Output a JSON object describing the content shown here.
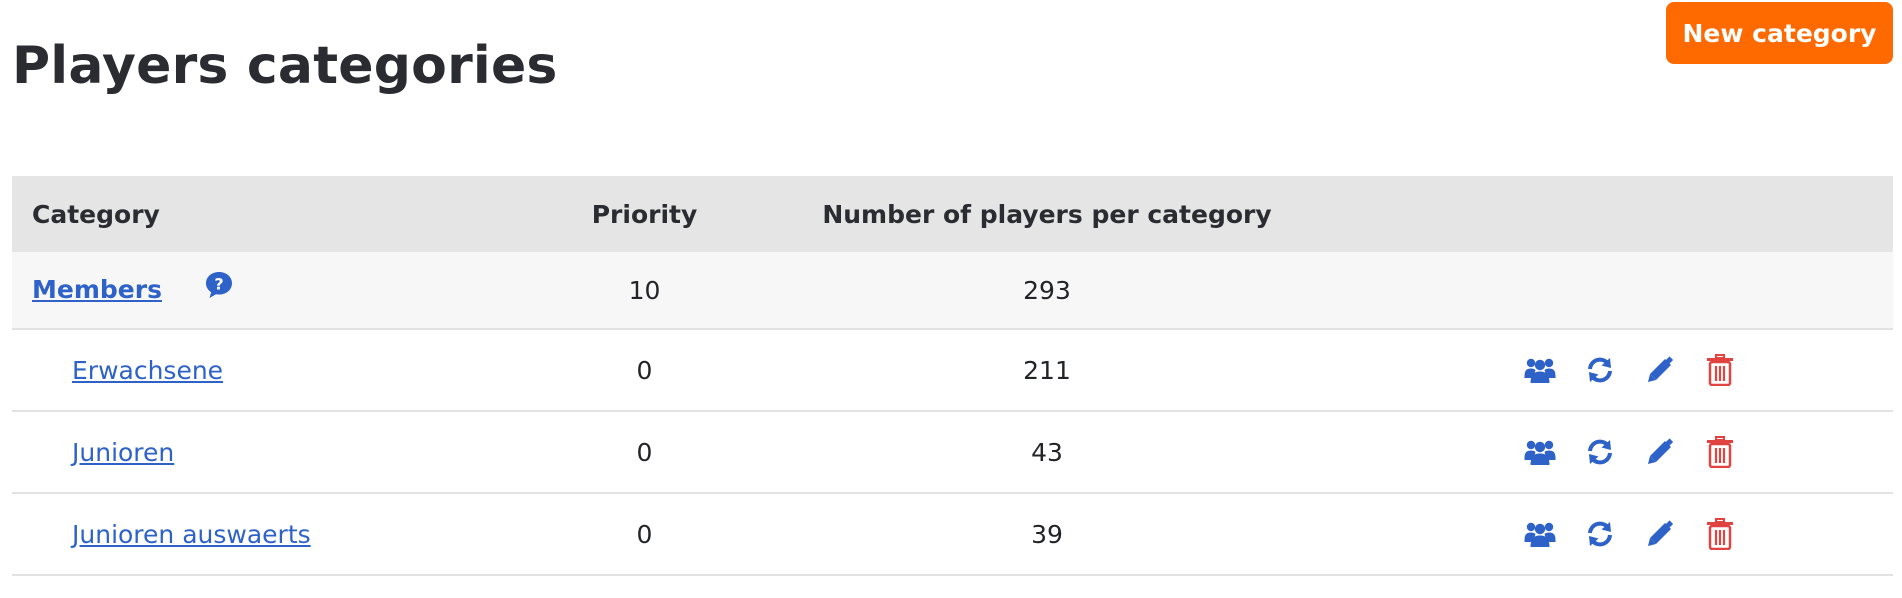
{
  "header": {
    "title": "Players categories",
    "new_button_label": "New category",
    "accent_color": "#ff6a00"
  },
  "table": {
    "columns": [
      "Category",
      "Priority",
      "Number of players per category",
      ""
    ],
    "parent": {
      "name": "Members",
      "priority": "10",
      "players": "293",
      "help_icon": "help-bubble-icon"
    },
    "rows": [
      {
        "name": "Erwachsene",
        "priority": "0",
        "players": "211"
      },
      {
        "name": "Junioren",
        "priority": "0",
        "players": "43"
      },
      {
        "name": "Junioren auswaerts",
        "priority": "0",
        "players": "39"
      }
    ],
    "row_actions": [
      "users-icon",
      "refresh-icon",
      "edit-pencil-icon",
      "trash-icon"
    ],
    "link_color": "#2f62c9",
    "delete_color": "#e04340"
  }
}
